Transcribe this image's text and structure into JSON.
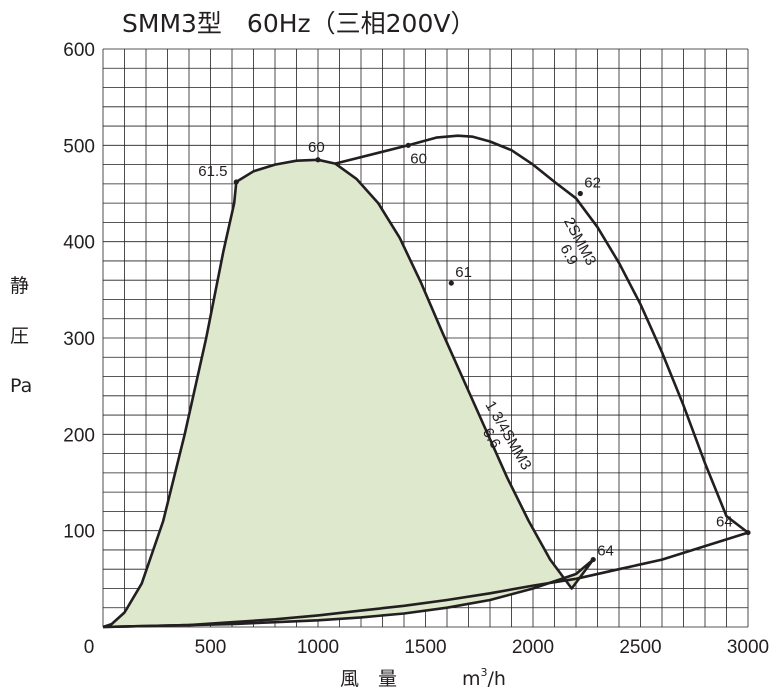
{
  "chart_data": {
    "type": "area",
    "title": "SMM3型　60Hz（三相200V）",
    "xlabel": "風　量",
    "xunit_base": "m",
    "xunit_sup": "3",
    "xunit_tail": "/h",
    "ylabel_chars": [
      "静",
      "圧",
      "Pa"
    ],
    "xlim": [
      0,
      3000
    ],
    "ylim": [
      0,
      600
    ],
    "x_ticks": [
      0,
      500,
      1000,
      1500,
      2000,
      2500,
      3000
    ],
    "y_ticks": [
      0,
      100,
      200,
      300,
      400,
      500,
      600
    ],
    "x_tick_labels": [
      "0",
      "500",
      "1000",
      "1500",
      "2000",
      "2500",
      "3000"
    ],
    "y_tick_labels": [
      "0",
      "100",
      "200",
      "300",
      "400",
      "500",
      "600"
    ],
    "grid": true,
    "grid_minor_x": 100,
    "grid_minor_y": 20,
    "fill_color": "#dde8cc",
    "line_color": "#231f20",
    "series": [
      {
        "name": "1 3/4SMM3 6.6",
        "filled": true,
        "x": [
          0,
          40,
          100,
          180,
          280,
          380,
          480,
          560,
          610,
          620,
          700,
          800,
          900,
          1000,
          1080,
          1180,
          1280,
          1380,
          1480,
          1580,
          1680,
          1780,
          1880,
          1980,
          2080,
          2180,
          2280,
          2200,
          2000,
          1800,
          1600,
          1400,
          1200,
          1000,
          800,
          600,
          400,
          200,
          0
        ],
        "y": [
          0,
          3,
          15,
          45,
          110,
          200,
          300,
          390,
          440,
          462,
          473,
          480,
          484,
          485,
          481,
          465,
          440,
          404,
          357,
          305,
          255,
          205,
          155,
          110,
          70,
          40,
          70,
          55,
          40,
          28,
          20,
          14,
          10,
          7,
          5,
          3,
          2,
          1,
          0
        ]
      },
      {
        "name": "2SMM3 6.9",
        "filled": false,
        "x": [
          1080,
          1420,
          1550,
          1650,
          1720,
          1800,
          1900,
          2000,
          2100,
          2200,
          2300,
          2400,
          2500,
          2600,
          2700,
          2800,
          2900,
          3000,
          2800,
          2600,
          2400,
          2200,
          2000,
          1800,
          1600,
          1400,
          1200,
          1000,
          800,
          600,
          400,
          200,
          0
        ],
        "y": [
          481,
          500,
          508,
          510,
          509,
          504,
          495,
          480,
          462,
          445,
          415,
          378,
          335,
          285,
          230,
          170,
          115,
          98,
          84,
          70,
          60,
          50,
          43,
          35,
          28,
          22,
          17,
          12,
          8,
          5,
          2,
          1,
          0
        ]
      }
    ],
    "points": [
      {
        "x": 620,
        "y": 462,
        "label": "61.5"
      },
      {
        "x": 1000,
        "y": 485,
        "label": "60"
      },
      {
        "x": 1420,
        "y": 500,
        "label": "60"
      },
      {
        "x": 2220,
        "y": 450,
        "label": "62"
      },
      {
        "x": 1620,
        "y": 357,
        "label": "61"
      },
      {
        "x": 2280,
        "y": 70,
        "label": "64"
      },
      {
        "x": 3000,
        "y": 98,
        "label": "64"
      }
    ],
    "curve_labels": [
      {
        "text": "2SMM3",
        "sub": "6.9",
        "x": 2230,
        "y": 385
      },
      {
        "text": "1 3/4SMM3",
        "sub": "6.6",
        "x": 1870,
        "y": 195
      }
    ]
  }
}
